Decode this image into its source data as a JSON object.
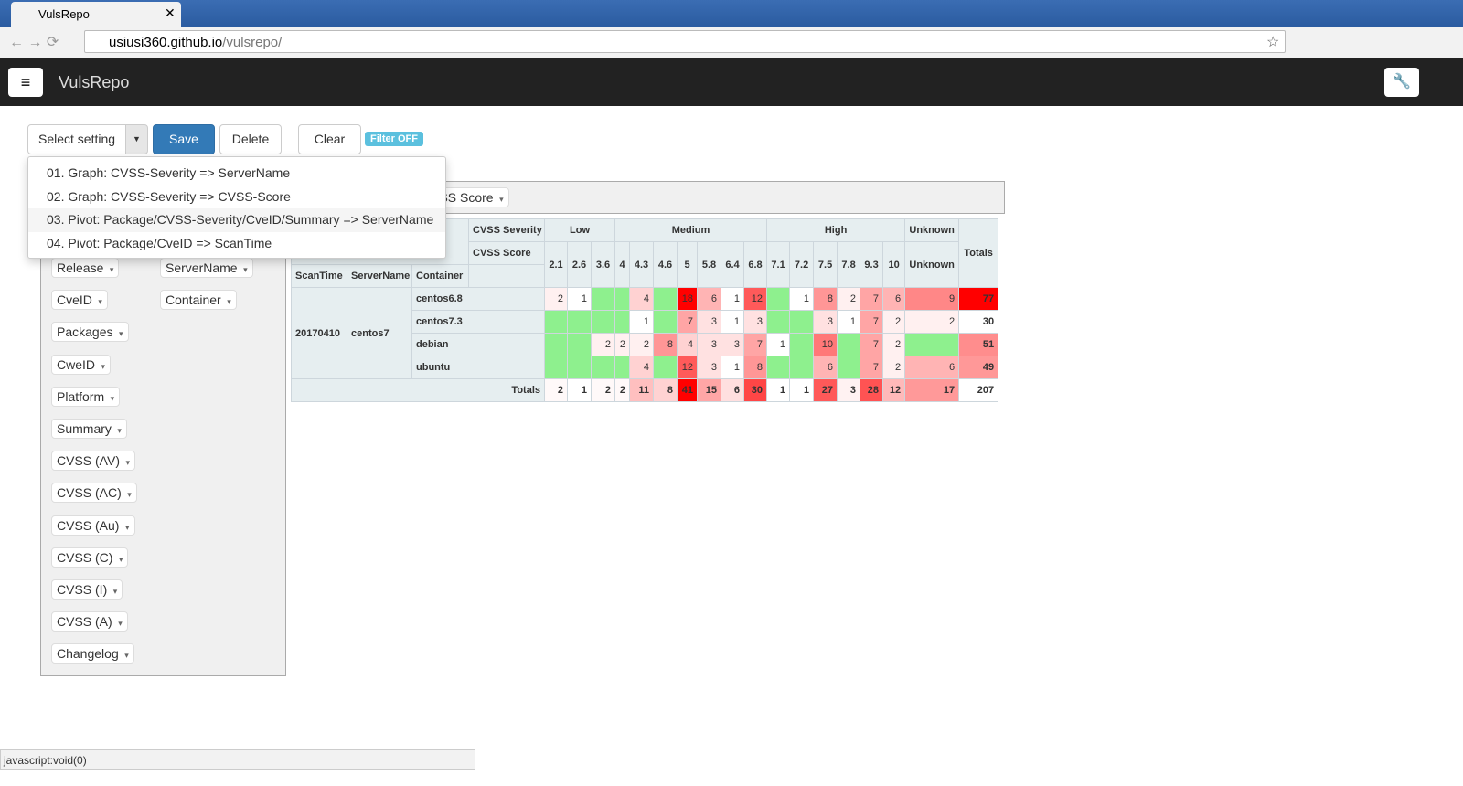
{
  "browser": {
    "tab_title": "VulsRepo",
    "url_host": "usiusi360.github.io",
    "url_path": "/vulsrepo/"
  },
  "app": {
    "title": "VulsRepo"
  },
  "toolbar": {
    "select_label": "Select setting",
    "buttons": [
      "Save",
      "Delete",
      "Clear"
    ],
    "filter_badge": "Filter OFF"
  },
  "settings_menu": {
    "items": [
      "01. Graph: CVSS-Severity => ServerName",
      "02. Graph: CVSS-Severity => CVSS-Score",
      "03. Pivot: Package/CVSS-Severity/CveID/Summary => ServerName",
      "04. Pivot: Package/CveID => ScanTime"
    ]
  },
  "pivot": {
    "unused_attrs": [
      "Release",
      "CveID",
      "Packages",
      "CweID",
      "Platform",
      "Summary",
      "CVSS (AV)",
      "CVSS (AC)",
      "CVSS (Au)",
      "CVSS (C)",
      "CVSS (I)",
      "CVSS (A)",
      "Changelog"
    ],
    "row_attr_chips": [
      "ServerName",
      "Container"
    ],
    "col_attr_chip": "CVSS Score"
  },
  "table": {
    "col_headers": [
      "CVSS Severity",
      "CVSS Score"
    ],
    "row_headers": [
      "ScanTime",
      "ServerName",
      "Container"
    ],
    "groups": [
      {
        "label": "Low",
        "scores": [
          "2.1",
          "2.6",
          "3.6"
        ]
      },
      {
        "label": "Medium",
        "scores": [
          "4",
          "4.3",
          "4.6",
          "5",
          "5.8",
          "6.4",
          "6.8"
        ]
      },
      {
        "label": "High",
        "scores": [
          "7.1",
          "7.2",
          "7.5",
          "7.8",
          "9.3",
          "10"
        ]
      },
      {
        "label": "Unknown",
        "scores": [
          "Unknown"
        ]
      }
    ],
    "totals_label": "Totals",
    "scan_time": "20170410",
    "server": "centos7",
    "rows": [
      {
        "container": "centos6.8",
        "cells": [
          2,
          1,
          null,
          null,
          4,
          null,
          18,
          6,
          1,
          12,
          null,
          1,
          8,
          2,
          7,
          6,
          9
        ],
        "total": 77
      },
      {
        "container": "centos7.3",
        "cells": [
          null,
          null,
          null,
          null,
          1,
          null,
          7,
          3,
          1,
          3,
          null,
          null,
          3,
          1,
          7,
          2,
          2
        ],
        "total": 30
      },
      {
        "container": "debian",
        "cells": [
          null,
          null,
          2,
          2,
          2,
          8,
          4,
          3,
          3,
          7,
          1,
          null,
          10,
          null,
          7,
          2,
          null
        ],
        "total": 51
      },
      {
        "container": "ubuntu",
        "cells": [
          null,
          null,
          null,
          null,
          4,
          null,
          12,
          3,
          1,
          8,
          null,
          null,
          6,
          null,
          7,
          2,
          6
        ],
        "total": 49
      }
    ],
    "column_totals": [
      2,
      1,
      2,
      2,
      11,
      8,
      41,
      15,
      6,
      30,
      1,
      1,
      27,
      3,
      28,
      12,
      17
    ],
    "grand_total": 207
  },
  "status_bar": "javascript:void(0)"
}
